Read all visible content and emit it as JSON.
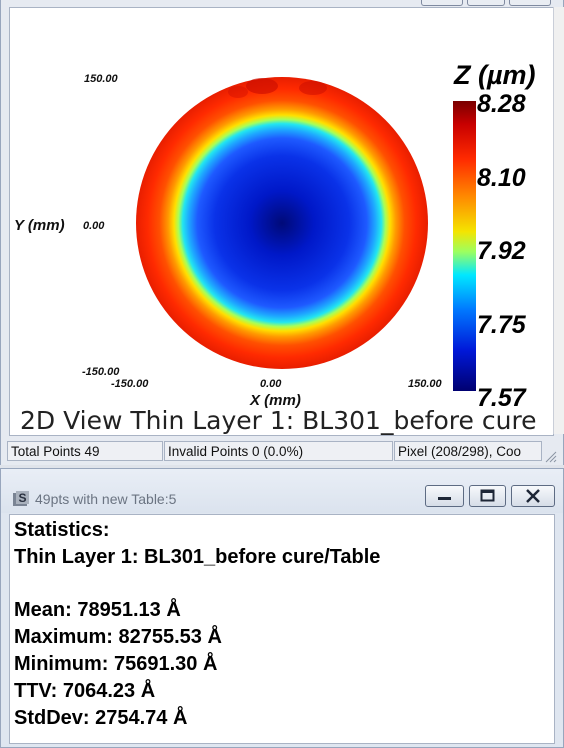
{
  "plot": {
    "y_ticks": [
      "150.00",
      "0.00",
      "-150.00"
    ],
    "x_ticks": [
      "-150.00",
      "0.00",
      "150.00"
    ],
    "x_axis_label": "X (mm)",
    "y_axis_label": "Y (mm)",
    "colorbar": {
      "title": "Z (µm)",
      "labels": [
        "8.28",
        "8.10",
        "7.92",
        "7.75",
        "7.57"
      ],
      "min_color": "#000070",
      "max_color": "#7a0000"
    },
    "caption": "2D View Thin Layer 1: BL301_before cure"
  },
  "status_bar": {
    "total_points": "Total Points 49",
    "invalid_points": "Invalid Points 0 (0.0%)",
    "pixel": "Pixel (208/298), Coo"
  },
  "stats_window": {
    "title": "49pts with new Table:5",
    "heading": "Statistics:",
    "layer": "Thin Layer 1: BL301_before cure/Table",
    "mean": "Mean: 78951.13 Å",
    "maximum": "Maximum: 82755.53 Å",
    "minimum": "Minimum: 75691.30 Å",
    "ttv": "TTV: 7064.23 Å",
    "stddev": "StdDev: 2754.74 Å"
  },
  "icons": {
    "app": "app-s-icon",
    "minimize": "minimize-icon",
    "maximize": "maximize-icon",
    "close": "close-icon"
  }
}
